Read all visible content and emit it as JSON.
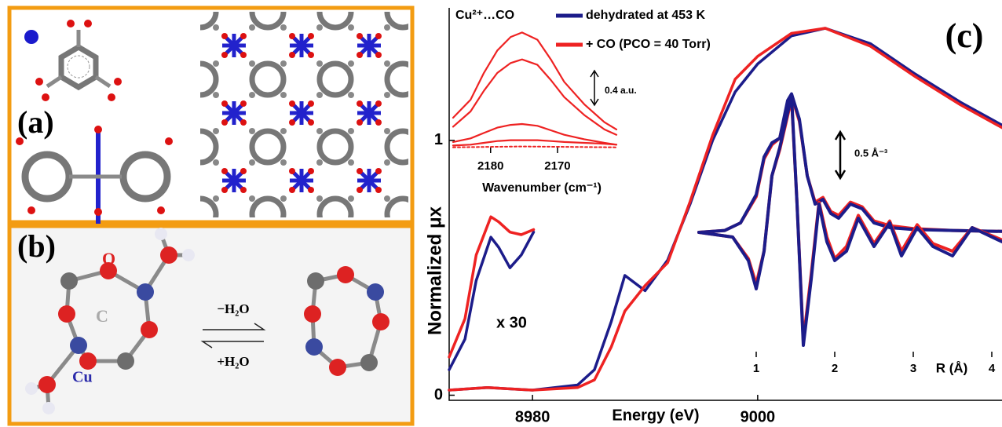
{
  "panels": {
    "a": {
      "label": "(a)"
    },
    "b": {
      "label": "(b)",
      "atom_labels": [
        "O",
        "C",
        "Cu"
      ],
      "forward": "−H₂O",
      "reverse": "+H₂O"
    }
  },
  "chart_data": [
    {
      "type": "line",
      "panel_label": "(c)",
      "x_label": "Energy (eV)",
      "y_label": "Normalized μx",
      "legend_title": "Cu²⁺…CO",
      "annotation": "x 30",
      "xlim": [
        8972.6,
        9021.7
      ],
      "ylim": [
        -0.02,
        1.52
      ],
      "xticks": [
        8980,
        9000
      ],
      "yticks": [
        0,
        1
      ],
      "series": [
        {
          "name": "dehydrated at 453 K",
          "color": "#1c1c8a",
          "x": [
            8972.6,
            8976,
            8980,
            8984,
            8985.5,
            8987,
            8988.2,
            8990,
            8992,
            8994,
            8996,
            8998,
            9000,
            9003,
            9006,
            9010,
            9014,
            9018,
            9021.7
          ],
          "values": [
            0.02,
            0.03,
            0.02,
            0.04,
            0.1,
            0.29,
            0.47,
            0.41,
            0.53,
            0.75,
            1.0,
            1.19,
            1.3,
            1.41,
            1.44,
            1.38,
            1.26,
            1.15,
            1.06
          ]
        },
        {
          "name": "+ CO (PCO = 40 Torr)",
          "color": "#ee2222",
          "x": [
            8972.6,
            8976,
            8980,
            8984,
            8985.5,
            8987,
            8988.2,
            8990,
            8992,
            8994,
            8996,
            8998,
            9000,
            9003,
            9006,
            9010,
            9014,
            9018,
            9021.7
          ],
          "values": [
            0.02,
            0.03,
            0.02,
            0.03,
            0.06,
            0.19,
            0.33,
            0.43,
            0.52,
            0.76,
            1.02,
            1.24,
            1.33,
            1.42,
            1.44,
            1.37,
            1.25,
            1.14,
            1.05
          ]
        },
        {
          "color": "#1c1c8a",
          "x": [
            8972.6,
            8974,
            8975,
            8976.3,
            8977,
            8978,
            8979,
            8980.1
          ],
          "values": [
            0.1,
            0.22,
            0.45,
            0.62,
            0.58,
            0.5,
            0.55,
            0.64
          ]
        },
        {
          "color": "#ee2222",
          "x": [
            8972.6,
            8974,
            8975,
            8976.3,
            8977,
            8978,
            8979,
            8980.1
          ],
          "values": [
            0.15,
            0.3,
            0.55,
            0.7,
            0.68,
            0.64,
            0.63,
            0.65
          ]
        }
      ]
    },
    {
      "type": "line",
      "x_label": "Wavenumber (cm⁻¹)",
      "annotation": "0.4 a.u.",
      "xlim": [
        2185.6,
        2161.2
      ],
      "ylim": [
        0,
        1.4
      ],
      "xticks": [
        2180,
        2170
      ],
      "series": [
        {
          "color": "#ee2222",
          "x": [
            2185.6,
            2183,
            2181,
            2179,
            2177,
            2175.3,
            2173,
            2171,
            2169,
            2166,
            2163,
            2161.2
          ],
          "values": [
            0.35,
            0.55,
            0.85,
            1.1,
            1.25,
            1.3,
            1.22,
            1.0,
            0.75,
            0.5,
            0.3,
            0.22
          ]
        },
        {
          "color": "#ee2222",
          "x": [
            2185.6,
            2183,
            2181,
            2179,
            2177,
            2175.3,
            2173,
            2171,
            2169,
            2166,
            2163,
            2161.2
          ],
          "values": [
            0.25,
            0.42,
            0.65,
            0.85,
            0.96,
            1.0,
            0.94,
            0.77,
            0.58,
            0.38,
            0.22,
            0.16
          ]
        },
        {
          "color": "#ee2222",
          "x": [
            2185.6,
            2183,
            2181,
            2179,
            2177,
            2175.3,
            2173,
            2171,
            2169,
            2166,
            2163,
            2161.2
          ],
          "values": [
            0.08,
            0.12,
            0.18,
            0.24,
            0.27,
            0.28,
            0.26,
            0.21,
            0.16,
            0.11,
            0.07,
            0.05
          ]
        },
        {
          "color": "#ee2222",
          "x": [
            2185.6,
            2183,
            2181,
            2179,
            2177,
            2175.3,
            2173,
            2171,
            2169,
            2166,
            2163,
            2161.2
          ],
          "values": [
            0.04,
            0.05,
            0.07,
            0.09,
            0.1,
            0.1,
            0.1,
            0.09,
            0.08,
            0.07,
            0.06,
            0.05
          ]
        },
        {
          "color": "#ee2222",
          "dash": true,
          "x": [
            2185.6,
            2175.3,
            2161.2
          ],
          "values": [
            0.02,
            0.03,
            0.02
          ]
        }
      ]
    },
    {
      "type": "line",
      "x_label": "R (Å)",
      "annotation": "0.5 Å⁻³",
      "xlim": [
        0.27,
        4.13
      ],
      "ylim": [
        -1.6,
        1.6
      ],
      "xticks": [
        1,
        2,
        3,
        4
      ],
      "series": [
        {
          "color": "#ee2222",
          "x": [
            0.27,
            0.6,
            0.8,
            1.0,
            1.1,
            1.2,
            1.3,
            1.4,
            1.45,
            1.55,
            1.65,
            1.75,
            1.85,
            1.95,
            2.05,
            2.2,
            2.35,
            2.5,
            2.7,
            3.0,
            3.5,
            4.13
          ],
          "values": [
            0,
            0.02,
            0.1,
            0.38,
            0.78,
            0.93,
            1.0,
            1.38,
            1.45,
            1.18,
            0.6,
            0.32,
            0.37,
            0.22,
            0.18,
            0.32,
            0.27,
            0.12,
            0.07,
            0.04,
            0.02,
            0.01
          ]
        },
        {
          "color": "#1c1c8a",
          "x": [
            0.27,
            0.6,
            0.8,
            1.0,
            1.1,
            1.2,
            1.3,
            1.4,
            1.45,
            1.55,
            1.65,
            1.75,
            1.85,
            1.95,
            2.05,
            2.2,
            2.35,
            2.5,
            2.7,
            3.0,
            3.5,
            4.13
          ],
          "values": [
            0,
            0.02,
            0.1,
            0.4,
            0.8,
            0.95,
            1.0,
            1.4,
            1.47,
            1.2,
            0.6,
            0.3,
            0.35,
            0.2,
            0.15,
            0.3,
            0.25,
            0.1,
            0.05,
            0.03,
            0.02,
            0.01
          ]
        },
        {
          "color": "#ee2222",
          "x": [
            0.27,
            0.7,
            0.9,
            1.0,
            1.1,
            1.2,
            1.3,
            1.45,
            1.52,
            1.6,
            1.7,
            1.8,
            1.9,
            2.0,
            2.15,
            2.3,
            2.5,
            2.7,
            2.85,
            3.05,
            3.25,
            3.5,
            3.75,
            4.13
          ],
          "values": [
            0,
            -0.05,
            -0.28,
            -0.55,
            -0.2,
            0.6,
            0.88,
            1.42,
            0.3,
            -1.15,
            -0.45,
            0.32,
            -0.05,
            -0.28,
            -0.15,
            0.18,
            -0.12,
            0.12,
            -0.2,
            0.08,
            -0.12,
            -0.2,
            0.05,
            -0.08
          ]
        },
        {
          "color": "#1c1c8a",
          "x": [
            0.27,
            0.7,
            0.9,
            1.0,
            1.1,
            1.2,
            1.3,
            1.45,
            1.52,
            1.6,
            1.7,
            1.8,
            1.9,
            2.0,
            2.15,
            2.3,
            2.5,
            2.7,
            2.85,
            3.05,
            3.25,
            3.5,
            3.75,
            4.13
          ],
          "values": [
            0,
            -0.05,
            -0.3,
            -0.6,
            -0.2,
            0.6,
            0.9,
            1.45,
            0.3,
            -1.2,
            -0.5,
            0.3,
            -0.1,
            -0.3,
            -0.2,
            0.15,
            -0.15,
            0.1,
            -0.25,
            0.05,
            -0.15,
            -0.25,
            0.05,
            -0.1
          ]
        }
      ]
    }
  ]
}
